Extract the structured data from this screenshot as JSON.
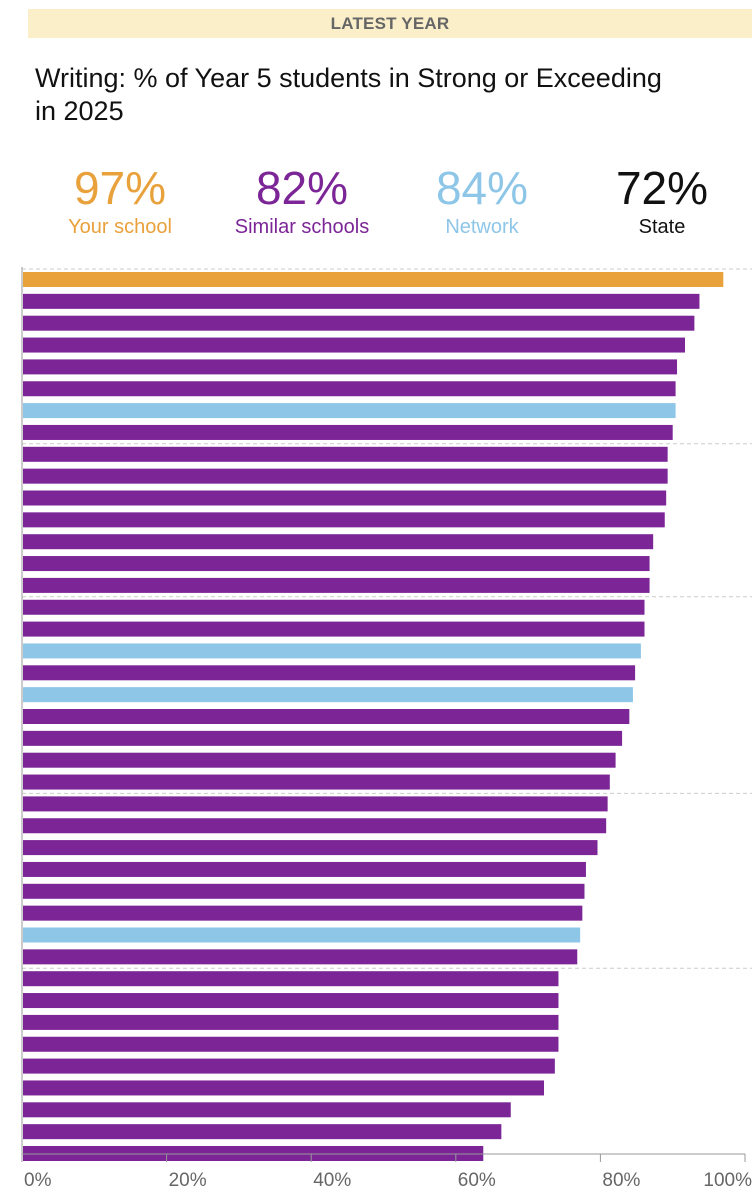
{
  "banner": "LATEST YEAR",
  "title": "Writing: % of Year 5 students in Strong or Exceeding in 2025",
  "kpis": [
    {
      "value": "97%",
      "label": "Your school",
      "color": "#e9a13b"
    },
    {
      "value": "82%",
      "label": "Similar schools",
      "color": "#7b2596"
    },
    {
      "value": "84%",
      "label": "Network",
      "color": "#8ec6e8"
    },
    {
      "value": "72%",
      "label": "State",
      "color": "#111111"
    }
  ],
  "colors": {
    "your_school": "#e9a13b",
    "similar": "#7b2596",
    "network": "#8ec6e8",
    "gridline": "#cccccc",
    "axis": "#999999",
    "tick_label": "#666666"
  },
  "chart_data": {
    "type": "bar",
    "orientation": "horizontal",
    "xlim": [
      0,
      100
    ],
    "xticks": [
      "0%",
      "20%",
      "40%",
      "60%",
      "80%",
      "100%"
    ],
    "bars": [
      {
        "value": 97,
        "group": "your_school"
      },
      {
        "value": 93.7,
        "group": "similar"
      },
      {
        "value": 93,
        "group": "similar"
      },
      {
        "value": 91.7,
        "group": "similar"
      },
      {
        "value": 90.6,
        "group": "similar"
      },
      {
        "value": 90.4,
        "group": "similar"
      },
      {
        "value": 90.4,
        "group": "network"
      },
      {
        "value": 90,
        "group": "similar"
      },
      {
        "value": 89.3,
        "group": "similar"
      },
      {
        "value": 89.3,
        "group": "similar"
      },
      {
        "value": 89.1,
        "group": "similar"
      },
      {
        "value": 88.9,
        "group": "similar"
      },
      {
        "value": 87.3,
        "group": "similar"
      },
      {
        "value": 86.8,
        "group": "similar"
      },
      {
        "value": 86.8,
        "group": "similar"
      },
      {
        "value": 86.1,
        "group": "similar"
      },
      {
        "value": 86.1,
        "group": "similar"
      },
      {
        "value": 85.6,
        "group": "network"
      },
      {
        "value": 84.8,
        "group": "similar"
      },
      {
        "value": 84.5,
        "group": "network"
      },
      {
        "value": 84,
        "group": "similar"
      },
      {
        "value": 83,
        "group": "similar"
      },
      {
        "value": 82.1,
        "group": "similar"
      },
      {
        "value": 81.3,
        "group": "similar"
      },
      {
        "value": 81,
        "group": "similar"
      },
      {
        "value": 80.8,
        "group": "similar"
      },
      {
        "value": 79.6,
        "group": "similar"
      },
      {
        "value": 78,
        "group": "similar"
      },
      {
        "value": 77.8,
        "group": "similar"
      },
      {
        "value": 77.5,
        "group": "similar"
      },
      {
        "value": 77.2,
        "group": "network"
      },
      {
        "value": 76.8,
        "group": "similar"
      },
      {
        "value": 74.2,
        "group": "similar"
      },
      {
        "value": 74.2,
        "group": "similar"
      },
      {
        "value": 74.2,
        "group": "similar"
      },
      {
        "value": 74.2,
        "group": "similar"
      },
      {
        "value": 73.7,
        "group": "similar"
      },
      {
        "value": 72.2,
        "group": "similar"
      },
      {
        "value": 67.6,
        "group": "similar"
      },
      {
        "value": 66.3,
        "group": "similar"
      },
      {
        "value": 63.8,
        "group": "similar"
      }
    ],
    "reference_lines": [
      {
        "name": "Your school",
        "value": 97
      },
      {
        "name": "Network",
        "value": 84
      },
      {
        "name": "Similar schools",
        "value": 82
      },
      {
        "name": "State",
        "value": 72
      }
    ],
    "grid": false,
    "legend": "top"
  }
}
